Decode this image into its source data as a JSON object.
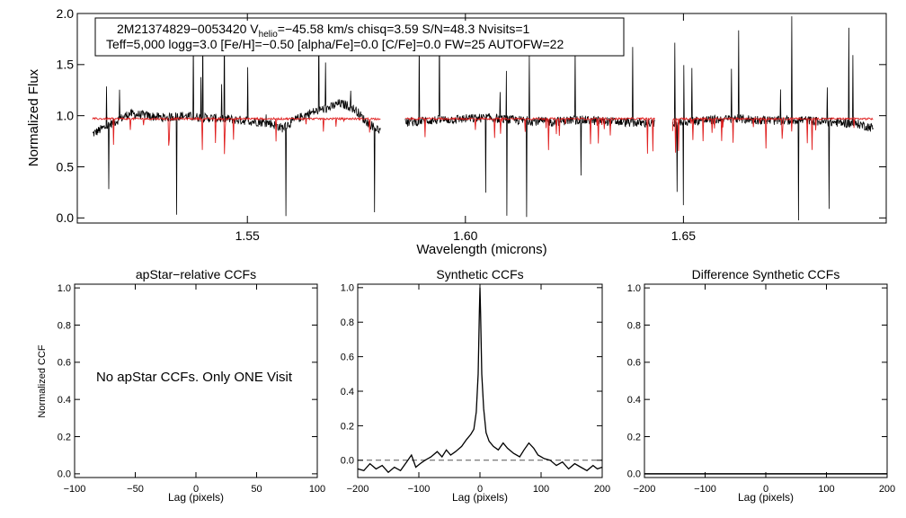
{
  "figure": {
    "top": {
      "info_line1": {
        "prefix": "2M21374829−0053420  V",
        "sub": "helio",
        "rest": "=−45.58 km/s  chisq=3.59  S/N=48.3  Nvisits=1"
      },
      "info_line2": "Teff=5,000 logg=3.0 [Fe/H]=−0.50 [alpha/Fe]=0.0 [C/Fe]=0.0 FW=25 AUTOFW=22"
    },
    "colors": {
      "observed": "#000000",
      "model": "#e02020",
      "zero_line": "#555555"
    }
  },
  "chart_data": [
    {
      "type": "line",
      "title": "",
      "xlabel": "Wavelength (microns)",
      "ylabel": "Normalized Flux",
      "xlim": [
        1.511,
        1.6965
      ],
      "ylim": [
        -0.05,
        2.0
      ],
      "xticks": [
        1.55,
        1.6,
        1.65
      ],
      "xtick_labels": [
        "1.55",
        "1.60",
        "1.65"
      ],
      "yticks": [
        0.0,
        0.5,
        1.0,
        1.5,
        2.0
      ],
      "ytick_labels": [
        "0.0",
        "0.5",
        "1.0",
        "1.5",
        "2.0"
      ],
      "segments": [
        {
          "name": "chip-blue",
          "x_range": [
            1.5145,
            1.5805
          ]
        },
        {
          "name": "chip-green",
          "x_range": [
            1.5862,
            1.6434
          ]
        },
        {
          "name": "chip-red",
          "x_range": [
            1.6475,
            1.6935
          ]
        }
      ],
      "series": [
        {
          "name": "observed spectrum",
          "x": [
            1.5145,
            1.517,
            1.52,
            1.523,
            1.527,
            1.531,
            1.535,
            1.54,
            1.545,
            1.55,
            1.555,
            1.558,
            1.561,
            1.564,
            1.567,
            1.569,
            1.571,
            1.573,
            1.575,
            1.577,
            1.5805,
            1.5862,
            1.59,
            1.595,
            1.6,
            1.605,
            1.61,
            1.615,
            1.62,
            1.625,
            1.63,
            1.635,
            1.64,
            1.6434,
            1.6475,
            1.652,
            1.657,
            1.662,
            1.667,
            1.672,
            1.677,
            1.682,
            1.687,
            1.69,
            1.6935
          ],
          "y": [
            0.82,
            0.88,
            0.95,
            1.02,
            1.0,
            0.98,
            1.0,
            0.98,
            0.97,
            0.95,
            0.93,
            0.88,
            0.96,
            1.02,
            1.06,
            1.08,
            1.12,
            1.1,
            1.05,
            0.95,
            0.85,
            0.93,
            0.95,
            0.96,
            0.97,
            0.98,
            0.96,
            0.95,
            0.94,
            0.96,
            0.95,
            0.94,
            0.93,
            0.92,
            0.92,
            0.95,
            0.96,
            0.97,
            0.96,
            0.95,
            0.96,
            0.94,
            0.93,
            0.92,
            0.88
          ]
        },
        {
          "name": "synthetic model",
          "x": [
            1.5155,
            1.5805,
            1.5862,
            1.6434,
            1.6475,
            1.6935
          ],
          "y": [
            0.97,
            0.97,
            0.97,
            0.97,
            0.97,
            0.97
          ]
        }
      ]
    },
    {
      "type": "line",
      "title": "apStar−relative CCFs",
      "xlabel": "Lag (pixels)",
      "ylabel": "Normalized CCF",
      "xlim": [
        -100,
        100
      ],
      "ylim": [
        -0.02,
        1.02
      ],
      "xticks": [
        -100,
        -50,
        0,
        50,
        100
      ],
      "xtick_labels": [
        "−100",
        "−50",
        "0",
        "50",
        "100"
      ],
      "yticks": [
        0.0,
        0.2,
        0.4,
        0.6,
        0.8,
        1.0
      ],
      "ytick_labels": [
        "0.0",
        "0.2",
        "0.4",
        "0.6",
        "0.8",
        "1.0"
      ],
      "annotation": "No apStar CCFs.  Only ONE Visit",
      "series": []
    },
    {
      "type": "line",
      "title": "Synthetic CCFs",
      "xlabel": "Lag (pixels)",
      "ylabel": "",
      "xlim": [
        -200,
        200
      ],
      "ylim": [
        -0.1,
        1.02
      ],
      "xticks": [
        -200,
        -100,
        0,
        100,
        200
      ],
      "xtick_labels": [
        "−200",
        "−100",
        "0",
        "100",
        "200"
      ],
      "yticks": [
        0.0,
        0.2,
        0.4,
        0.6,
        0.8,
        1.0
      ],
      "ytick_labels": [
        "0.0",
        "0.2",
        "0.4",
        "0.6",
        "0.8",
        "1.0"
      ],
      "zero_line": 0.0,
      "series": [
        {
          "name": "synthetic CCF",
          "x": [
            -200,
            -190,
            -180,
            -170,
            -160,
            -150,
            -140,
            -130,
            -120,
            -112,
            -105,
            -98,
            -90,
            -80,
            -70,
            -62,
            -55,
            -48,
            -40,
            -30,
            -22,
            -15,
            -10,
            -6,
            -3,
            -1,
            0,
            1,
            3,
            6,
            10,
            15,
            22,
            30,
            38,
            45,
            55,
            65,
            72,
            80,
            88,
            95,
            105,
            115,
            125,
            135,
            145,
            155,
            165,
            175,
            185,
            192,
            200
          ],
          "y": [
            -0.05,
            -0.06,
            -0.02,
            -0.05,
            -0.03,
            -0.07,
            -0.04,
            -0.06,
            -0.01,
            0.03,
            -0.04,
            -0.02,
            0.0,
            0.02,
            0.05,
            0.02,
            0.06,
            0.03,
            0.05,
            0.08,
            0.12,
            0.15,
            0.18,
            0.28,
            0.5,
            0.85,
            1.0,
            0.85,
            0.5,
            0.3,
            0.16,
            0.11,
            0.08,
            0.06,
            0.1,
            0.07,
            0.04,
            0.02,
            0.06,
            0.1,
            0.07,
            0.03,
            0.01,
            0.0,
            -0.03,
            -0.01,
            -0.05,
            -0.02,
            -0.04,
            -0.06,
            -0.03,
            -0.05,
            -0.04
          ]
        }
      ]
    },
    {
      "type": "line",
      "title": "Difference Synthetic CCFs",
      "xlabel": "Lag (pixels)",
      "ylabel": "",
      "xlim": [
        -200,
        200
      ],
      "ylim": [
        -0.02,
        1.02
      ],
      "xticks": [
        -200,
        -100,
        0,
        100,
        200
      ],
      "xtick_labels": [
        "−200",
        "−100",
        "0",
        "100",
        "200"
      ],
      "yticks": [
        0.0,
        0.2,
        0.4,
        0.6,
        0.8,
        1.0
      ],
      "ytick_labels": [
        "0.0",
        "0.2",
        "0.4",
        "0.6",
        "0.8",
        "1.0"
      ],
      "series": [
        {
          "name": "difference CCF",
          "x": [
            -200,
            200
          ],
          "y": [
            0.0,
            0.0
          ]
        }
      ]
    }
  ]
}
